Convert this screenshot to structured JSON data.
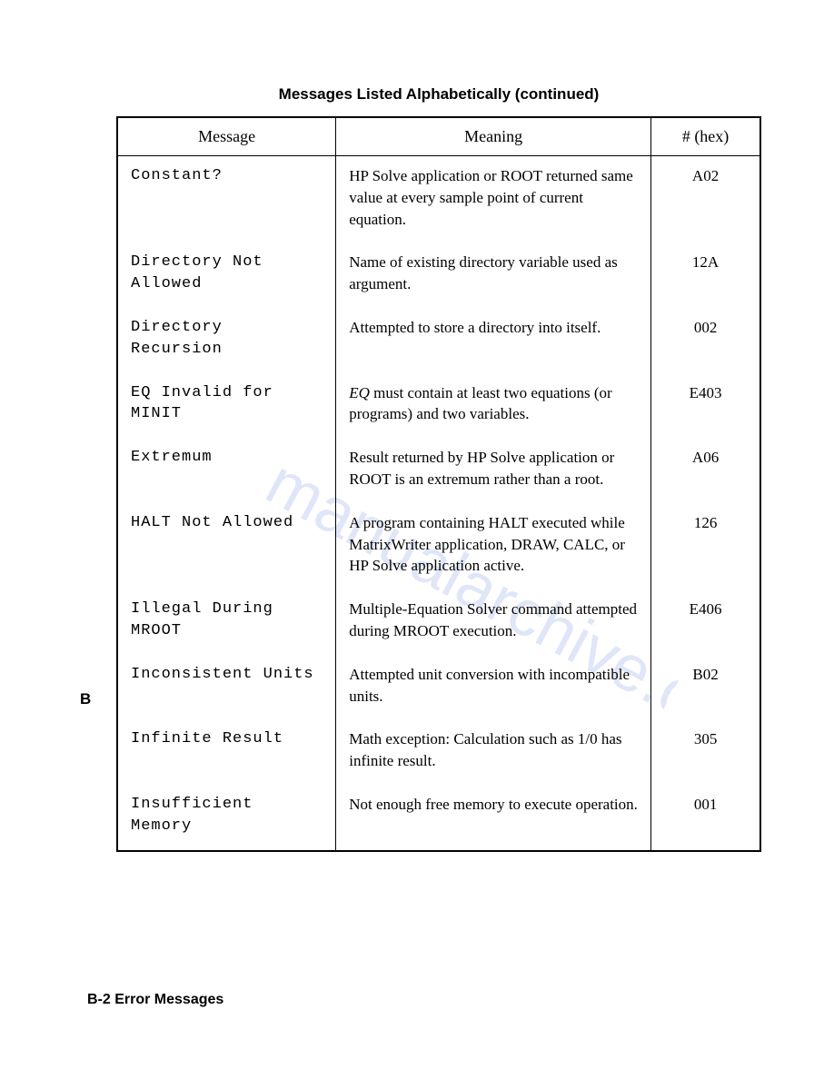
{
  "title": "Messages Listed Alphabetically (continued)",
  "section_marker": "B",
  "footer": "B-2   Error Messages",
  "watermark_text": "manual archive.com",
  "table": {
    "columns": [
      "Message",
      "Meaning",
      "# (hex)"
    ],
    "column_widths_pct": [
      34,
      49,
      17
    ],
    "border_color": "#000000",
    "background_color": "#ffffff",
    "header_fontsize": 18,
    "body_fontsize": 17,
    "message_font": "Courier New",
    "meaning_font": "Georgia",
    "rows": [
      {
        "message": "Constant?",
        "meaning": "HP Solve application or ROOT returned same value at every sample point of current equation.",
        "hex": "A02"
      },
      {
        "message": "Directory Not Allowed",
        "meaning": "Name of existing directory variable used as argument.",
        "hex": "12A"
      },
      {
        "message": "Directory Recursion",
        "meaning": "Attempted to store a directory into itself.",
        "hex": "002"
      },
      {
        "message": "EQ Invalid for MINIT",
        "meaning_html": "<span class=\"italic\">EQ</span> must contain at least two equations (or programs) and two variables.",
        "hex": "E403"
      },
      {
        "message": "Extremum",
        "meaning": "Result returned by HP Solve application or ROOT is an extremum rather than a root.",
        "hex": "A06"
      },
      {
        "message": "HALT Not Allowed",
        "meaning": "A program containing HALT executed while MatrixWriter application, DRAW, CALC, or HP Solve application active.",
        "hex": "126"
      },
      {
        "message": "Illegal During MROOT",
        "meaning": "Multiple-Equation Solver command attempted during MROOT execution.",
        "hex": "E406"
      },
      {
        "message": "Inconsistent Units",
        "meaning": "Attempted unit conversion with incompatible units.",
        "hex": "B02"
      },
      {
        "message": "Infinite Result",
        "meaning": "Math exception: Calculation such as 1/0 has infinite result.",
        "hex": "305"
      },
      {
        "message": "Insufficient Memory",
        "meaning": "Not enough free memory to execute operation.",
        "hex": "001"
      }
    ]
  }
}
